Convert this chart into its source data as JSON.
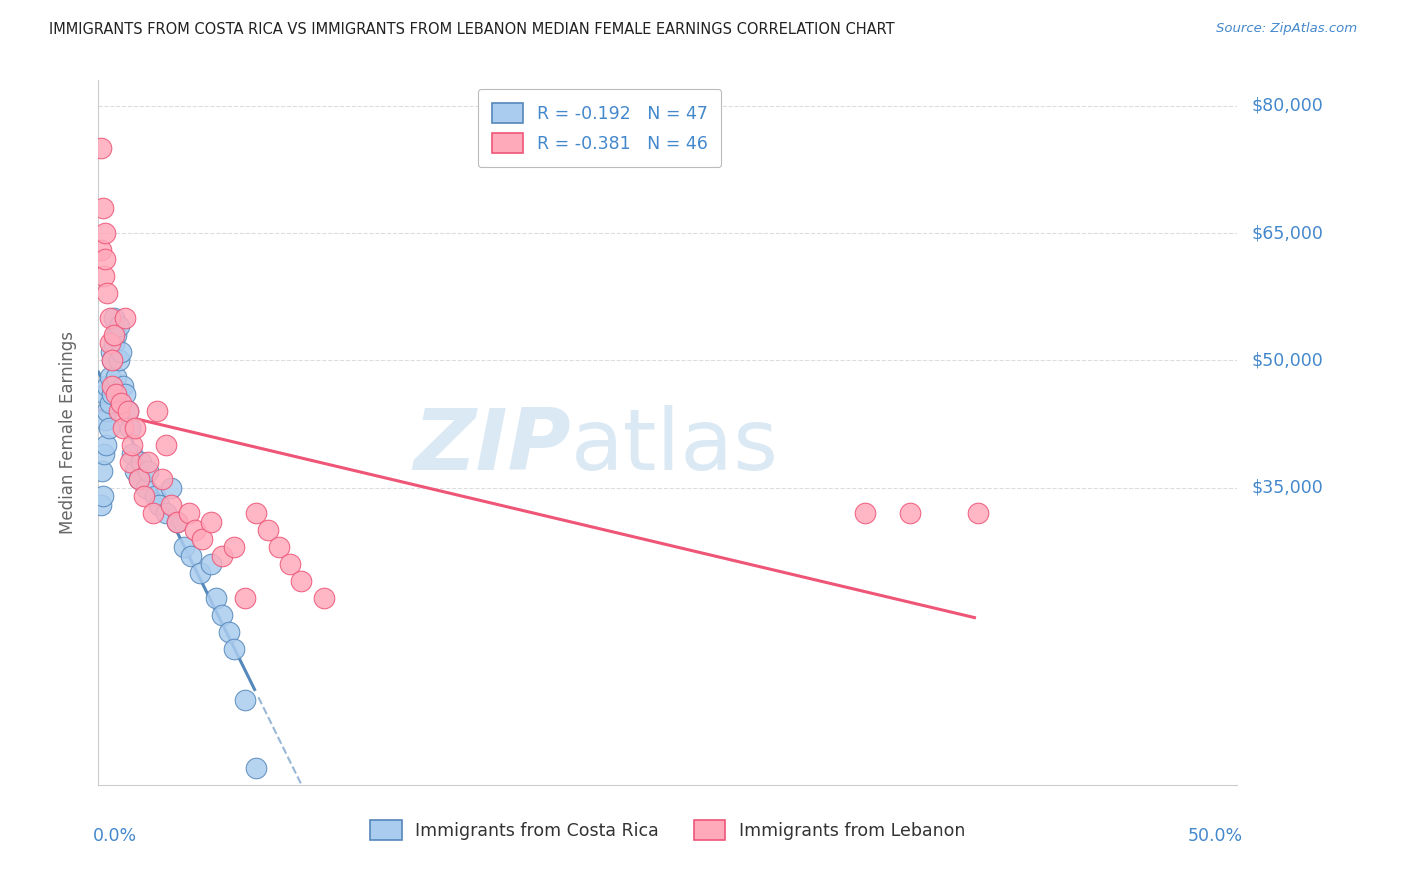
{
  "title": "IMMIGRANTS FROM COSTA RICA VS IMMIGRANTS FROM LEBANON MEDIAN FEMALE EARNINGS CORRELATION CHART",
  "source": "Source: ZipAtlas.com",
  "ylabel": "Median Female Earnings",
  "xmin": 0.0,
  "xmax": 0.505,
  "ymin": 0,
  "ymax": 83000,
  "legend1_r": "-0.192",
  "legend1_n": "47",
  "legend2_r": "-0.381",
  "legend2_n": "46",
  "color_cr": "#aaccee",
  "color_lb": "#ffaabb",
  "color_cr_line": "#5588bb",
  "color_lb_line": "#ee5577",
  "color_axis": "#4488cc",
  "grid_color": "#dddddd",
  "grid_vals": [
    35000,
    50000,
    65000,
    80000
  ],
  "ytick_labels": {
    "35000": "$35,000",
    "50000": "$50,000",
    "65000": "$65,000",
    "80000": "$80,000"
  },
  "costa_rica_x": [
    0.001,
    0.0015,
    0.002,
    0.0025,
    0.003,
    0.003,
    0.0035,
    0.004,
    0.004,
    0.0045,
    0.005,
    0.005,
    0.0055,
    0.006,
    0.006,
    0.007,
    0.007,
    0.008,
    0.008,
    0.009,
    0.009,
    0.01,
    0.011,
    0.012,
    0.013,
    0.014,
    0.015,
    0.016,
    0.018,
    0.019,
    0.021,
    0.022,
    0.025,
    0.027,
    0.03,
    0.032,
    0.035,
    0.038,
    0.041,
    0.045,
    0.05,
    0.052,
    0.055,
    0.058,
    0.06,
    0.065,
    0.07
  ],
  "costa_rica_y": [
    33000,
    37000,
    34000,
    39000,
    43000,
    46000,
    40000,
    44000,
    47000,
    42000,
    45000,
    48000,
    51000,
    46000,
    50000,
    52000,
    55000,
    48000,
    53000,
    50000,
    54000,
    51000,
    47000,
    46000,
    44000,
    42000,
    39000,
    37000,
    36000,
    38000,
    35000,
    37000,
    34000,
    33000,
    32000,
    35000,
    31000,
    28000,
    27000,
    25000,
    26000,
    22000,
    20000,
    18000,
    16000,
    10000,
    2000
  ],
  "lebanon_x": [
    0.001,
    0.001,
    0.002,
    0.0025,
    0.003,
    0.003,
    0.004,
    0.005,
    0.005,
    0.006,
    0.006,
    0.007,
    0.008,
    0.009,
    0.01,
    0.011,
    0.012,
    0.013,
    0.014,
    0.015,
    0.016,
    0.018,
    0.02,
    0.022,
    0.024,
    0.026,
    0.028,
    0.03,
    0.032,
    0.035,
    0.04,
    0.043,
    0.046,
    0.05,
    0.055,
    0.06,
    0.065,
    0.07,
    0.075,
    0.08,
    0.085,
    0.09,
    0.1,
    0.34,
    0.36,
    0.39
  ],
  "lebanon_y": [
    75000,
    63000,
    68000,
    60000,
    65000,
    62000,
    58000,
    55000,
    52000,
    50000,
    47000,
    53000,
    46000,
    44000,
    45000,
    42000,
    55000,
    44000,
    38000,
    40000,
    42000,
    36000,
    34000,
    38000,
    32000,
    44000,
    36000,
    40000,
    33000,
    31000,
    32000,
    30000,
    29000,
    31000,
    27000,
    28000,
    22000,
    32000,
    30000,
    28000,
    26000,
    24000,
    22000,
    32000,
    32000,
    32000
  ]
}
